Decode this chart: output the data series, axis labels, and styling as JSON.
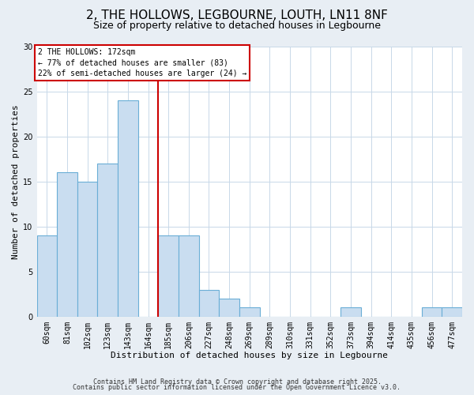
{
  "title": "2, THE HOLLOWS, LEGBOURNE, LOUTH, LN11 8NF",
  "subtitle": "Size of property relative to detached houses in Legbourne",
  "xlabel": "Distribution of detached houses by size in Legbourne",
  "ylabel": "Number of detached properties",
  "bar_labels": [
    "60sqm",
    "81sqm",
    "102sqm",
    "123sqm",
    "143sqm",
    "164sqm",
    "185sqm",
    "206sqm",
    "227sqm",
    "248sqm",
    "269sqm",
    "289sqm",
    "310sqm",
    "331sqm",
    "352sqm",
    "373sqm",
    "394sqm",
    "414sqm",
    "435sqm",
    "456sqm",
    "477sqm"
  ],
  "bar_values": [
    9,
    16,
    15,
    17,
    24,
    0,
    9,
    9,
    3,
    2,
    1,
    0,
    0,
    0,
    0,
    1,
    0,
    0,
    0,
    1,
    1
  ],
  "bar_color": "#c9ddf0",
  "bar_edge_color": "#6aaed6",
  "vline_color": "#cc0000",
  "annotation_title": "2 THE HOLLOWS: 172sqm",
  "annotation_line1": "← 77% of detached houses are smaller (83)",
  "annotation_line2": "22% of semi-detached houses are larger (24) →",
  "annotation_box_edge": "#cc0000",
  "annotation_bg": "#ffffff",
  "ylim": [
    0,
    30
  ],
  "yticks": [
    0,
    5,
    10,
    15,
    20,
    25,
    30
  ],
  "footer1": "Contains HM Land Registry data © Crown copyright and database right 2025.",
  "footer2": "Contains public sector information licensed under the Open Government Licence v3.0.",
  "bg_color": "#e8eef4",
  "plot_bg_color": "#ffffff",
  "title_fontsize": 11,
  "subtitle_fontsize": 9,
  "axis_label_fontsize": 8,
  "tick_fontsize": 7,
  "footer_fontsize": 6
}
